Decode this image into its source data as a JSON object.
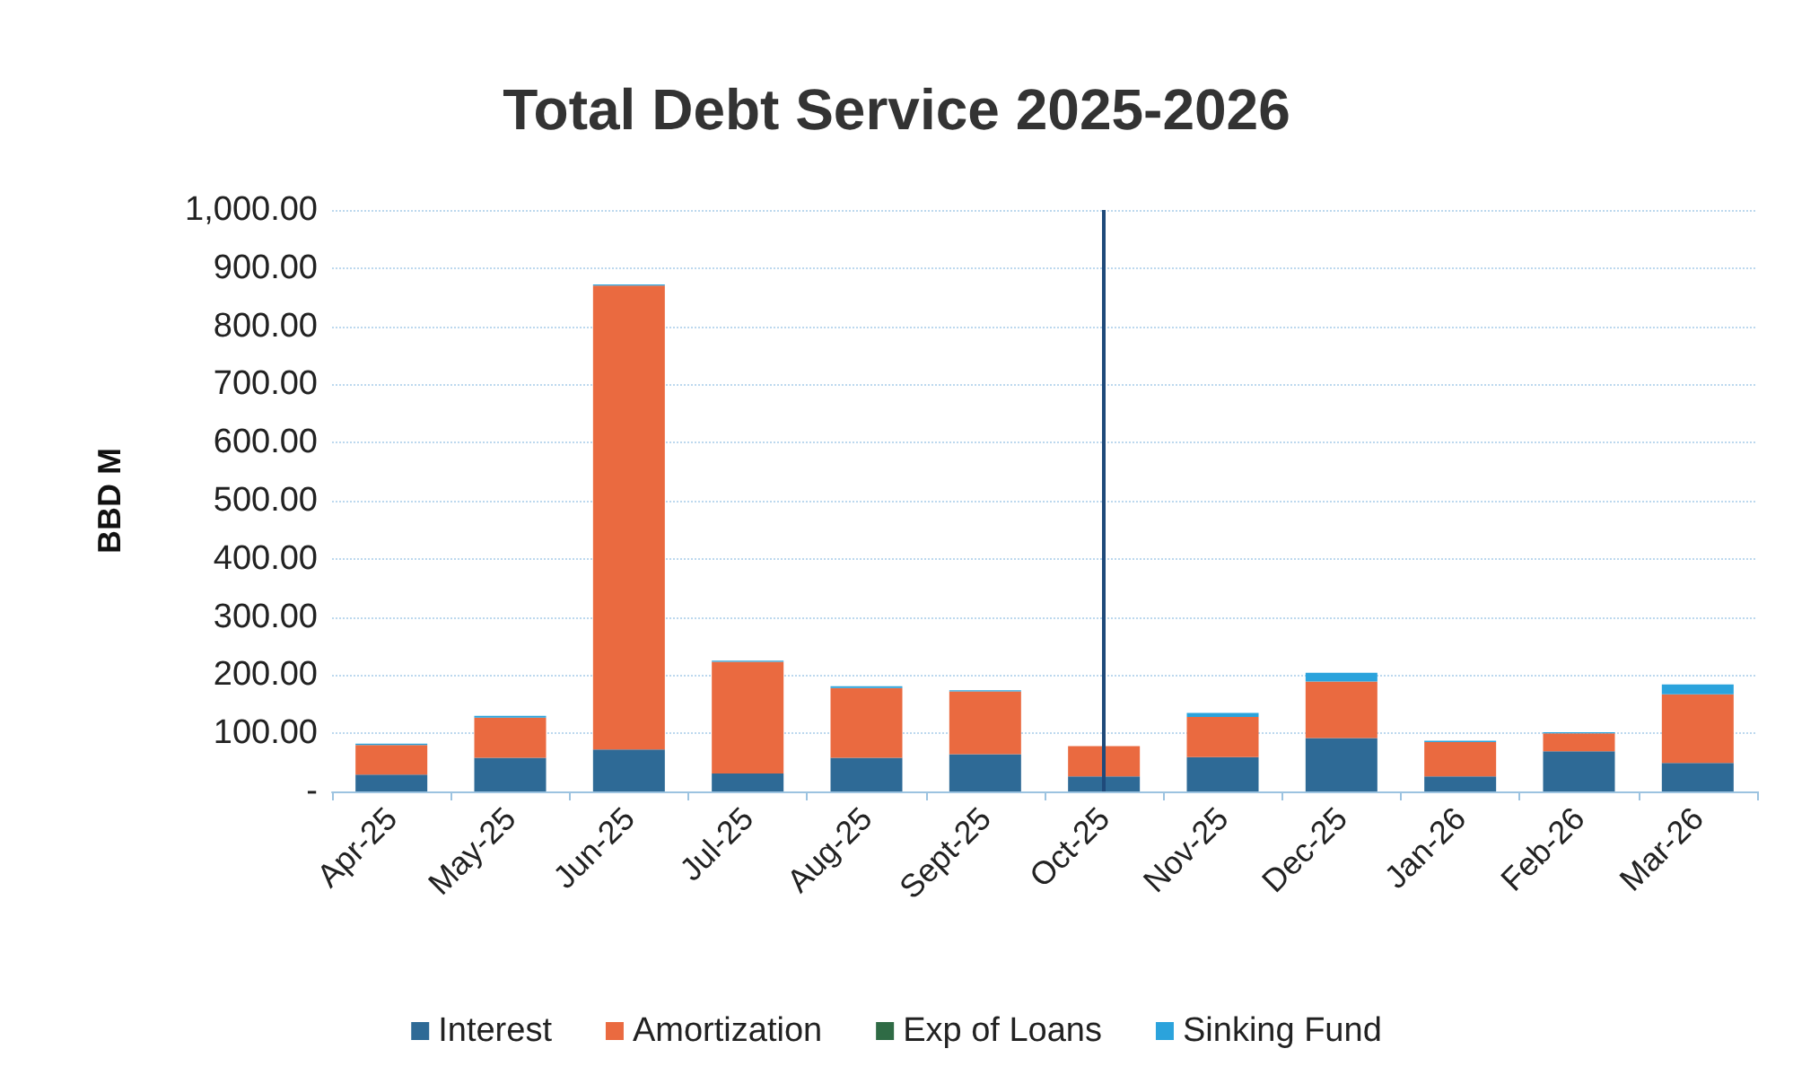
{
  "chart_data": {
    "type": "bar",
    "title": "Total Debt Service 2025-2026",
    "ylabel": "BBD M",
    "stacked": true,
    "categories": [
      "Apr-25",
      "May-25",
      "Jun-25",
      "Jul-25",
      "Aug-25",
      "Sept-25",
      "Oct-25",
      "Nov-25",
      "Dec-25",
      "Jan-26",
      "Feb-26",
      "Mar-26"
    ],
    "series": [
      {
        "name": "Interest",
        "color": "#2e6a96",
        "values": [
          29,
          58,
          72,
          31,
          58,
          64,
          26,
          59,
          92,
          26,
          69,
          49
        ]
      },
      {
        "name": "Amortization",
        "color": "#ea6a40",
        "values": [
          51,
          69,
          798,
          192,
          120,
          108,
          52,
          69,
          97,
          59,
          31,
          118
        ]
      },
      {
        "name": "Exp of Loans",
        "color": "#2f6b45",
        "values": [
          0,
          0,
          0,
          0,
          0,
          0,
          0,
          0,
          0,
          0,
          0,
          0
        ]
      },
      {
        "name": "Sinking Fund",
        "color": "#2ba3dc",
        "values": [
          2,
          3,
          2,
          2,
          3,
          2,
          null,
          7,
          15,
          2,
          2,
          17
        ]
      }
    ],
    "ylim": [
      0,
      1000
    ],
    "yticks": [
      {
        "value": 0,
        "label": "-"
      },
      {
        "value": 100,
        "label": "100.00"
      },
      {
        "value": 200,
        "label": "200.00"
      },
      {
        "value": 300,
        "label": "300.00"
      },
      {
        "value": 400,
        "label": "400.00"
      },
      {
        "value": 500,
        "label": "500.00"
      },
      {
        "value": 600,
        "label": "600.00"
      },
      {
        "value": 700,
        "label": "700.00"
      },
      {
        "value": 800,
        "label": "800.00"
      },
      {
        "value": 900,
        "label": "900.00"
      },
      {
        "value": 1000,
        "label": "1,000.00"
      }
    ],
    "ref_lines": [
      {
        "axis": "x",
        "value": "Oct-25",
        "color": "#1f4a7a"
      }
    ],
    "grid": "y",
    "legend": "bottom"
  }
}
